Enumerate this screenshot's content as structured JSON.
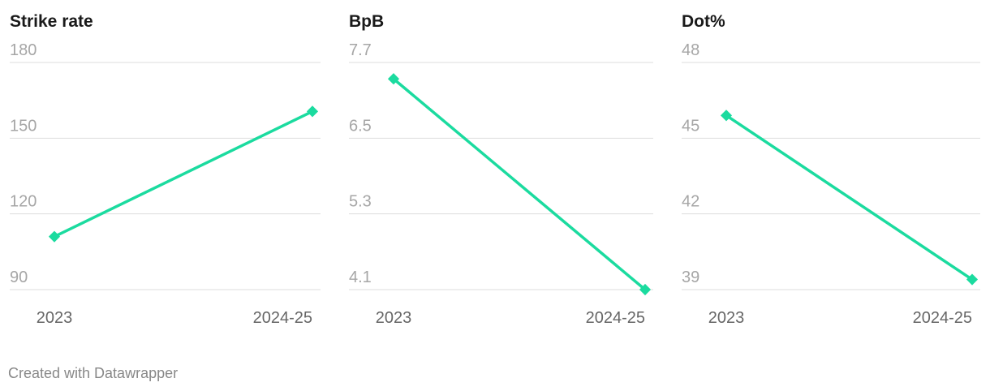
{
  "chart_data": [
    {
      "type": "line",
      "title": "Strike rate",
      "categories": [
        "2023",
        "2024-25"
      ],
      "series": [
        {
          "name": "Strike rate",
          "color": "#1bdb9f",
          "values": [
            111,
            160.6
          ]
        }
      ],
      "ylim": [
        90,
        180
      ],
      "yticks": [
        90,
        120,
        150,
        180
      ],
      "grid": true
    },
    {
      "type": "line",
      "title": "BpB",
      "categories": [
        "2023",
        "2024-25"
      ],
      "series": [
        {
          "name": "BpB",
          "color": "#1bdb9f",
          "values": [
            7.44,
            4.1
          ]
        }
      ],
      "ylim": [
        4.1,
        7.7
      ],
      "yticks": [
        4.1,
        5.3,
        6.5,
        7.7
      ],
      "grid": true
    },
    {
      "type": "line",
      "title": "Dot%",
      "categories": [
        "2023",
        "2024-25"
      ],
      "series": [
        {
          "name": "Dot%",
          "color": "#1bdb9f",
          "values": [
            45.9,
            39.4
          ]
        }
      ],
      "ylim": [
        39,
        48
      ],
      "yticks": [
        39,
        42,
        45,
        48
      ],
      "grid": true
    }
  ],
  "footer": "Created with Datawrapper"
}
